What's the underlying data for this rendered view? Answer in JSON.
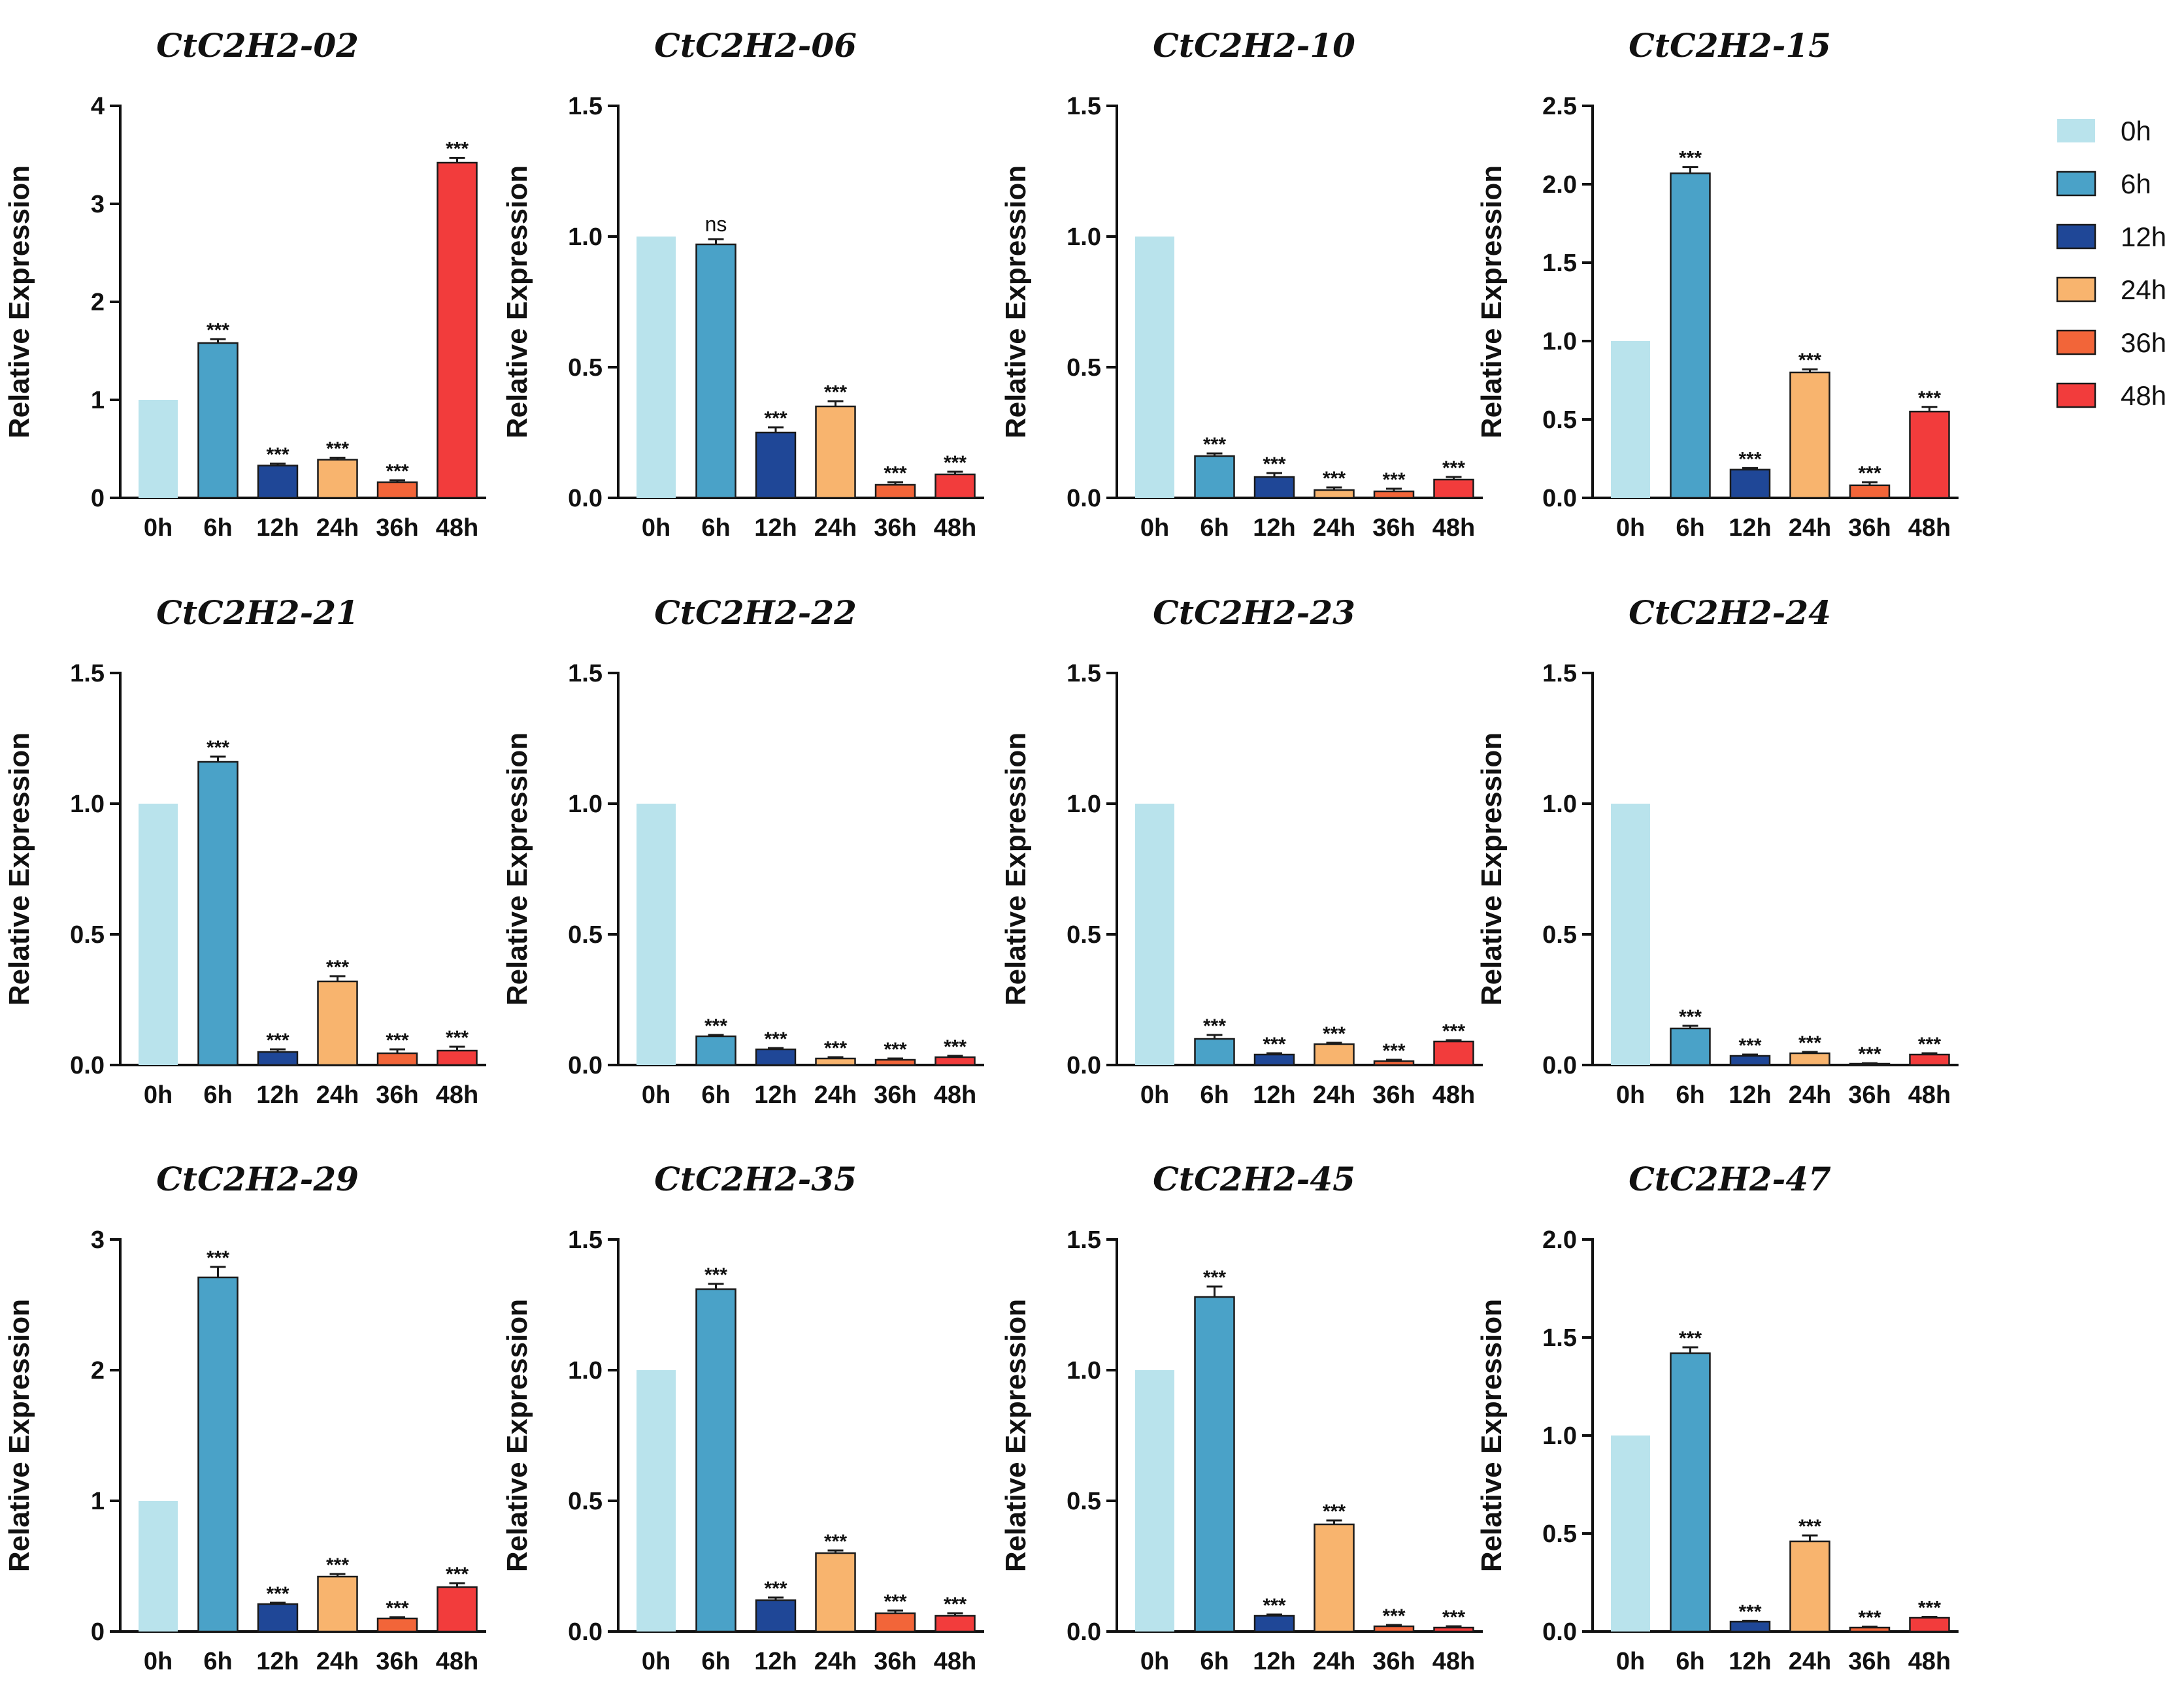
{
  "colors": {
    "0h": "#b9e3ec",
    "6h": "#4aa2c8",
    "12h": "#1f4797",
    "24h": "#f8b46e",
    "36h": "#f26539",
    "48h": "#f23c3c",
    "axis": "#111111"
  },
  "legend": {
    "placement": "top-right",
    "entries": [
      "0h",
      "6h",
      "12h",
      "24h",
      "36h",
      "48h"
    ]
  },
  "chart_data": [
    {
      "type": "bar",
      "title": "CtC2H2-02",
      "ylabel": "Relative Expression",
      "categories": [
        "0h",
        "6h",
        "12h",
        "24h",
        "36h",
        "48h"
      ],
      "values": [
        1.0,
        1.58,
        0.33,
        0.39,
        0.16,
        3.42
      ],
      "errors": [
        0,
        0.04,
        0.02,
        0.02,
        0.02,
        0.05
      ],
      "significance": [
        "",
        "***",
        "***",
        "***",
        "***",
        "***"
      ],
      "ylim": [
        0,
        4
      ],
      "yticks": [
        0,
        1,
        2,
        3,
        4
      ],
      "ytick_labels": [
        "0",
        "1",
        "2",
        "3",
        "4"
      ]
    },
    {
      "type": "bar",
      "title": "CtC2H2-06",
      "ylabel": "Relative Expression",
      "categories": [
        "0h",
        "6h",
        "12h",
        "24h",
        "36h",
        "48h"
      ],
      "values": [
        1.0,
        0.97,
        0.25,
        0.35,
        0.05,
        0.09
      ],
      "errors": [
        0,
        0.02,
        0.02,
        0.02,
        0.01,
        0.01
      ],
      "significance": [
        "",
        "ns",
        "***",
        "***",
        "***",
        "***"
      ],
      "ylim": [
        0,
        1.5
      ],
      "yticks": [
        0,
        0.5,
        1.0,
        1.5
      ],
      "ytick_labels": [
        "0.0",
        "0.5",
        "1.0",
        "1.5"
      ]
    },
    {
      "type": "bar",
      "title": "CtC2H2-10",
      "ylabel": "Relative Expression",
      "categories": [
        "0h",
        "6h",
        "12h",
        "24h",
        "36h",
        "48h"
      ],
      "values": [
        1.0,
        0.16,
        0.08,
        0.03,
        0.025,
        0.07
      ],
      "errors": [
        0,
        0.01,
        0.015,
        0.01,
        0.01,
        0.01
      ],
      "significance": [
        "",
        "***",
        "***",
        "***",
        "***",
        "***"
      ],
      "ylim": [
        0,
        1.5
      ],
      "yticks": [
        0,
        0.5,
        1.0,
        1.5
      ],
      "ytick_labels": [
        "0.0",
        "0.5",
        "1.0",
        "1.5"
      ]
    },
    {
      "type": "bar",
      "title": "CtC2H2-15",
      "ylabel": "Relative Expression",
      "categories": [
        "0h",
        "6h",
        "12h",
        "24h",
        "36h",
        "48h"
      ],
      "values": [
        1.0,
        2.07,
        0.18,
        0.8,
        0.08,
        0.55
      ],
      "errors": [
        0,
        0.04,
        0.01,
        0.02,
        0.02,
        0.03
      ],
      "significance": [
        "",
        "***",
        "***",
        "***",
        "***",
        "***"
      ],
      "ylim": [
        0,
        2.5
      ],
      "yticks": [
        0,
        0.5,
        1.0,
        1.5,
        2.0,
        2.5
      ],
      "ytick_labels": [
        "0.0",
        "0.5",
        "1.0",
        "1.5",
        "2.0",
        "2.5"
      ]
    },
    {
      "type": "bar",
      "title": "CtC2H2-21",
      "ylabel": "Relative Expression",
      "categories": [
        "0h",
        "6h",
        "12h",
        "24h",
        "36h",
        "48h"
      ],
      "values": [
        1.0,
        1.16,
        0.05,
        0.32,
        0.045,
        0.055
      ],
      "errors": [
        0,
        0.02,
        0.01,
        0.02,
        0.015,
        0.015
      ],
      "significance": [
        "",
        "***",
        "***",
        "***",
        "***",
        "***"
      ],
      "ylim": [
        0,
        1.5
      ],
      "yticks": [
        0,
        0.5,
        1.0,
        1.5
      ],
      "ytick_labels": [
        "0.0",
        "0.5",
        "1.0",
        "1.5"
      ]
    },
    {
      "type": "bar",
      "title": "CtC2H2-22",
      "ylabel": "Relative Expression",
      "categories": [
        "0h",
        "6h",
        "12h",
        "24h",
        "36h",
        "48h"
      ],
      "values": [
        1.0,
        0.11,
        0.06,
        0.025,
        0.02,
        0.03
      ],
      "errors": [
        0,
        0.005,
        0.005,
        0.005,
        0.005,
        0.005
      ],
      "significance": [
        "",
        "***",
        "***",
        "***",
        "***",
        "***"
      ],
      "ylim": [
        0,
        1.5
      ],
      "yticks": [
        0,
        0.5,
        1.0,
        1.5
      ],
      "ytick_labels": [
        "0.0",
        "0.5",
        "1.0",
        "1.5"
      ]
    },
    {
      "type": "bar",
      "title": "CtC2H2-23",
      "ylabel": "Relative Expression",
      "categories": [
        "0h",
        "6h",
        "12h",
        "24h",
        "36h",
        "48h"
      ],
      "values": [
        1.0,
        0.1,
        0.04,
        0.08,
        0.015,
        0.09
      ],
      "errors": [
        0,
        0.015,
        0.005,
        0.005,
        0.005,
        0.005
      ],
      "significance": [
        "",
        "***",
        "***",
        "***",
        "***",
        "***"
      ],
      "ylim": [
        0,
        1.5
      ],
      "yticks": [
        0,
        0.5,
        1.0,
        1.5
      ],
      "ytick_labels": [
        "0.0",
        "0.5",
        "1.0",
        "1.5"
      ]
    },
    {
      "type": "bar",
      "title": "CtC2H2-24",
      "ylabel": "Relative Expression",
      "categories": [
        "0h",
        "6h",
        "12h",
        "24h",
        "36h",
        "48h"
      ],
      "values": [
        1.0,
        0.14,
        0.035,
        0.045,
        0.005,
        0.04
      ],
      "errors": [
        0,
        0.01,
        0.005,
        0.005,
        0.002,
        0.005
      ],
      "significance": [
        "",
        "***",
        "***",
        "***",
        "***",
        "***"
      ],
      "ylim": [
        0,
        1.5
      ],
      "yticks": [
        0,
        0.5,
        1.0,
        1.5
      ],
      "ytick_labels": [
        "0.0",
        "0.5",
        "1.0",
        "1.5"
      ]
    },
    {
      "type": "bar",
      "title": "CtC2H2-29",
      "ylabel": "Relative Expression",
      "categories": [
        "0h",
        "6h",
        "12h",
        "24h",
        "36h",
        "48h"
      ],
      "values": [
        1.0,
        2.71,
        0.21,
        0.42,
        0.1,
        0.34
      ],
      "errors": [
        0,
        0.08,
        0.01,
        0.02,
        0.01,
        0.03
      ],
      "significance": [
        "",
        "***",
        "***",
        "***",
        "***",
        "***"
      ],
      "ylim": [
        0,
        3
      ],
      "yticks": [
        0,
        1,
        2,
        3
      ],
      "ytick_labels": [
        "0",
        "1",
        "2",
        "3"
      ]
    },
    {
      "type": "bar",
      "title": "CtC2H2-35",
      "ylabel": "Relative Expression",
      "categories": [
        "0h",
        "6h",
        "12h",
        "24h",
        "36h",
        "48h"
      ],
      "values": [
        1.0,
        1.31,
        0.12,
        0.3,
        0.07,
        0.06
      ],
      "errors": [
        0,
        0.02,
        0.01,
        0.01,
        0.01,
        0.01
      ],
      "significance": [
        "",
        "***",
        "***",
        "***",
        "***",
        "***"
      ],
      "ylim": [
        0,
        1.5
      ],
      "yticks": [
        0,
        0.5,
        1.0,
        1.5
      ],
      "ytick_labels": [
        "0.0",
        "0.5",
        "1.0",
        "1.5"
      ]
    },
    {
      "type": "bar",
      "title": "CtC2H2-45",
      "ylabel": "Relative Expression",
      "categories": [
        "0h",
        "6h",
        "12h",
        "24h",
        "36h",
        "48h"
      ],
      "values": [
        1.0,
        1.28,
        0.06,
        0.41,
        0.02,
        0.015
      ],
      "errors": [
        0,
        0.04,
        0.005,
        0.015,
        0.005,
        0.005
      ],
      "significance": [
        "",
        "***",
        "***",
        "***",
        "***",
        "***"
      ],
      "ylim": [
        0,
        1.5
      ],
      "yticks": [
        0,
        0.5,
        1.0,
        1.5
      ],
      "ytick_labels": [
        "0.0",
        "0.5",
        "1.0",
        "1.5"
      ]
    },
    {
      "type": "bar",
      "title": "CtC2H2-47",
      "ylabel": "Relative Expression",
      "categories": [
        "0h",
        "6h",
        "12h",
        "24h",
        "36h",
        "48h"
      ],
      "values": [
        1.0,
        1.42,
        0.05,
        0.46,
        0.02,
        0.07
      ],
      "errors": [
        0,
        0.03,
        0.005,
        0.03,
        0.005,
        0.005
      ],
      "significance": [
        "",
        "***",
        "***",
        "***",
        "***",
        "***"
      ],
      "ylim": [
        0,
        2.0
      ],
      "yticks": [
        0,
        0.5,
        1.0,
        1.5,
        2.0
      ],
      "ytick_labels": [
        "0.0",
        "0.5",
        "1.0",
        "1.5",
        "2.0"
      ]
    }
  ]
}
